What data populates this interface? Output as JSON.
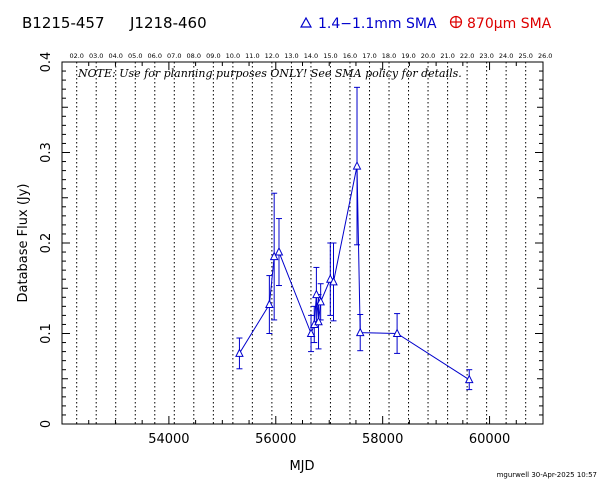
{
  "header": {
    "source_name": "B1215-457",
    "source_alias": "J1218-460",
    "legend_sma_1mm": "1.4−1.1mm SMA",
    "legend_sma_870": "870µm SMA",
    "color_1mm": "#0000cc",
    "color_870": "#dd0000"
  },
  "note": "NOTE: Use for planning purposes ONLY!  See SMA policy for details.",
  "footer": {
    "stamp": "mgurwell 30-Apr-2025 10:57"
  },
  "chart_data": {
    "type": "scatter",
    "xlabel": "MJD",
    "ylabel": "Database Flux (Jy)",
    "xlim": [
      52000,
      61000
    ],
    "ylim": [
      0,
      0.4
    ],
    "x_ticks": [
      54000,
      56000,
      58000,
      60000
    ],
    "x_tick_labels": [
      "54000",
      "56000",
      "58000",
      "60000"
    ],
    "y_ticks": [
      0,
      0.1,
      0.2,
      0.3,
      0.4
    ],
    "y_tick_labels": [
      "0",
      "0.1",
      "0.2",
      "0.3",
      "0.4"
    ],
    "top_axis_labels": [
      "02.0",
      "03.0",
      "04.0",
      "05.0",
      "06.0",
      "07.0",
      "08.0",
      "09.0",
      "10.0",
      "11.0",
      "12.0",
      "13.0",
      "14.0",
      "15.0",
      "16.0",
      "17.0",
      "18.0",
      "19.0",
      "20.0",
      "21.0",
      "22.0",
      "23.0",
      "24.0",
      "25.0",
      "26.0"
    ],
    "top_axis_mjd": [
      52275,
      52640,
      53005,
      53371,
      53736,
      54101,
      54466,
      54832,
      55197,
      55562,
      55927,
      56293,
      56658,
      57023,
      57388,
      57754,
      58119,
      58484,
      58849,
      59215,
      59580,
      59945,
      60310,
      60676,
      61041
    ],
    "series": [
      {
        "marker": "triangle",
        "points": [
          {
            "x": 55320,
            "y": 0.078,
            "err": 0.017
          },
          {
            "x": 55880,
            "y": 0.132,
            "err": 0.032
          },
          {
            "x": 55970,
            "y": 0.185,
            "err": 0.07
          },
          {
            "x": 56060,
            "y": 0.19,
            "err": 0.037
          },
          {
            "x": 56660,
            "y": 0.1,
            "err": 0.02
          },
          {
            "x": 56720,
            "y": 0.11,
            "err": 0.02
          },
          {
            "x": 56760,
            "y": 0.143,
            "err": 0.03
          },
          {
            "x": 56800,
            "y": 0.113,
            "err": 0.03
          },
          {
            "x": 56840,
            "y": 0.135,
            "err": 0.02
          },
          {
            "x": 57020,
            "y": 0.16,
            "err": 0.04
          },
          {
            "x": 57080,
            "y": 0.157,
            "err": 0.043
          },
          {
            "x": 57520,
            "y": 0.285,
            "err": 0.087
          },
          {
            "x": 57580,
            "y": 0.101,
            "err": 0.02
          },
          {
            "x": 58270,
            "y": 0.1,
            "err": 0.022
          },
          {
            "x": 59620,
            "y": 0.049,
            "err": 0.011
          }
        ]
      }
    ]
  }
}
